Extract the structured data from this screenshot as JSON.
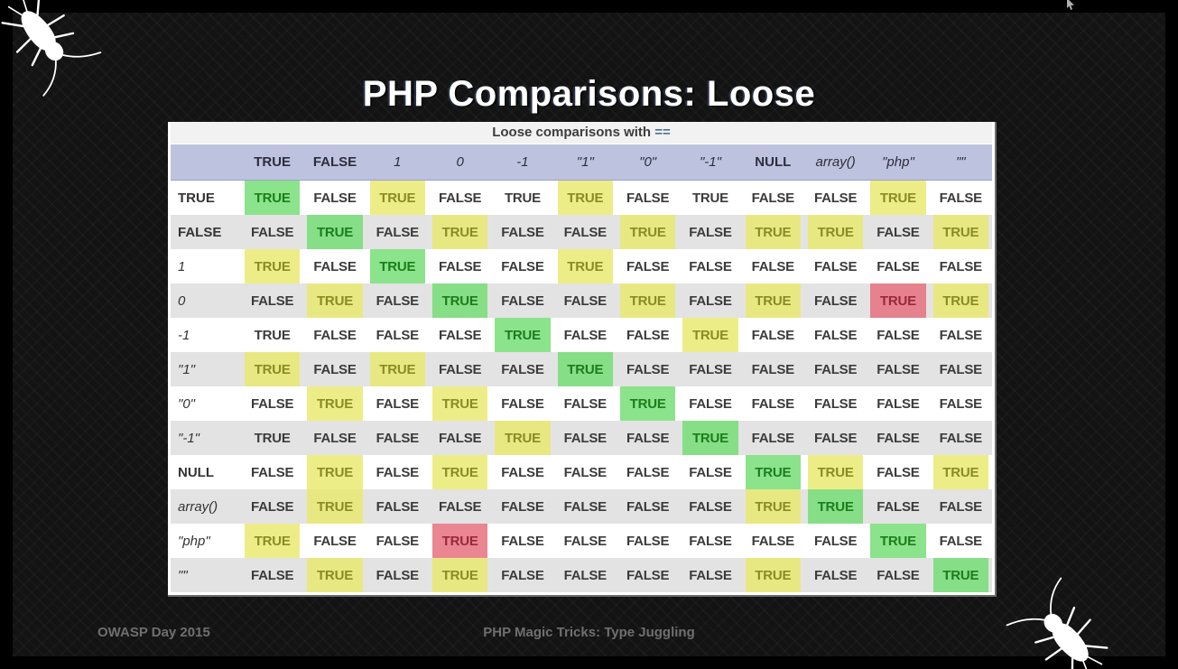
{
  "slide": {
    "title": "PHP Comparisons: Loose",
    "footer": {
      "left": "OWASP Day 2015",
      "center": "PHP Magic Tricks: Type Juggling"
    }
  },
  "colors": {
    "caption_bg": "#f2f2f2",
    "operator_text": "#4d6f96",
    "header_bg": "#bdc3df",
    "row_alt_bg": "#e3e3e3",
    "diagonal_green_bg": "rgba(110,220,110,0.8)",
    "diagonal_green_text": "#1c7d1c",
    "notable_yellow_bg": "rgba(233,233,105,0.8)",
    "notable_yellow_text": "#8b8b24",
    "danger_red_bg": "rgba(229,113,126,0.85)",
    "danger_red_text": "#97293c"
  },
  "chart_data": {
    "type": "table",
    "caption_text": "Loose comparisons with",
    "caption_operator": "==",
    "true_label": "TRUE",
    "false_label": "FALSE",
    "operands": [
      "TRUE",
      "FALSE",
      "1",
      "0",
      "-1",
      "\"1\"",
      "\"0\"",
      "\"-1\"",
      "NULL",
      "array()",
      "\"php\"",
      "\"\""
    ],
    "operand_styles": [
      "bold",
      "bold",
      "italic",
      "italic",
      "italic",
      "italic",
      "italic",
      "italic",
      "bold",
      "italic",
      "italic",
      "italic"
    ],
    "cells": [
      [
        "T:green",
        "F",
        "T:yellow",
        "F",
        "T",
        "T:yellow",
        "F",
        "T",
        "F",
        "F",
        "T:yellow",
        "F"
      ],
      [
        "F",
        "T:green",
        "F",
        "T:yellow",
        "F",
        "F",
        "T:yellow",
        "F",
        "T:yellow",
        "T:yellow",
        "F",
        "T:yellow"
      ],
      [
        "T:yellow",
        "F",
        "T:green",
        "F",
        "F",
        "T:yellow",
        "F",
        "F",
        "F",
        "F",
        "F",
        "F"
      ],
      [
        "F",
        "T:yellow",
        "F",
        "T:green",
        "F",
        "F",
        "T:yellow",
        "F",
        "T:yellow",
        "F",
        "T:red",
        "T:yellow"
      ],
      [
        "T",
        "F",
        "F",
        "F",
        "T:green",
        "F",
        "F",
        "T:yellow",
        "F",
        "F",
        "F",
        "F"
      ],
      [
        "T:yellow",
        "F",
        "T:yellow",
        "F",
        "F",
        "T:green",
        "F",
        "F",
        "F",
        "F",
        "F",
        "F"
      ],
      [
        "F",
        "T:yellow",
        "F",
        "T:yellow",
        "F",
        "F",
        "T:green",
        "F",
        "F",
        "F",
        "F",
        "F"
      ],
      [
        "T",
        "F",
        "F",
        "F",
        "T:yellow",
        "F",
        "F",
        "T:green",
        "F",
        "F",
        "F",
        "F"
      ],
      [
        "F",
        "T:yellow",
        "F",
        "T:yellow",
        "F",
        "F",
        "F",
        "F",
        "T:green",
        "T:yellow",
        "F",
        "T:yellow"
      ],
      [
        "F",
        "T:yellow",
        "F",
        "F",
        "F",
        "F",
        "F",
        "F",
        "T:yellow",
        "T:green",
        "F",
        "F"
      ],
      [
        "T:yellow",
        "F",
        "F",
        "T:red",
        "F",
        "F",
        "F",
        "F",
        "F",
        "F",
        "T:green",
        "F"
      ],
      [
        "F",
        "T:yellow",
        "F",
        "T:yellow",
        "F",
        "F",
        "F",
        "F",
        "T:yellow",
        "F",
        "F",
        "T:green"
      ]
    ]
  }
}
